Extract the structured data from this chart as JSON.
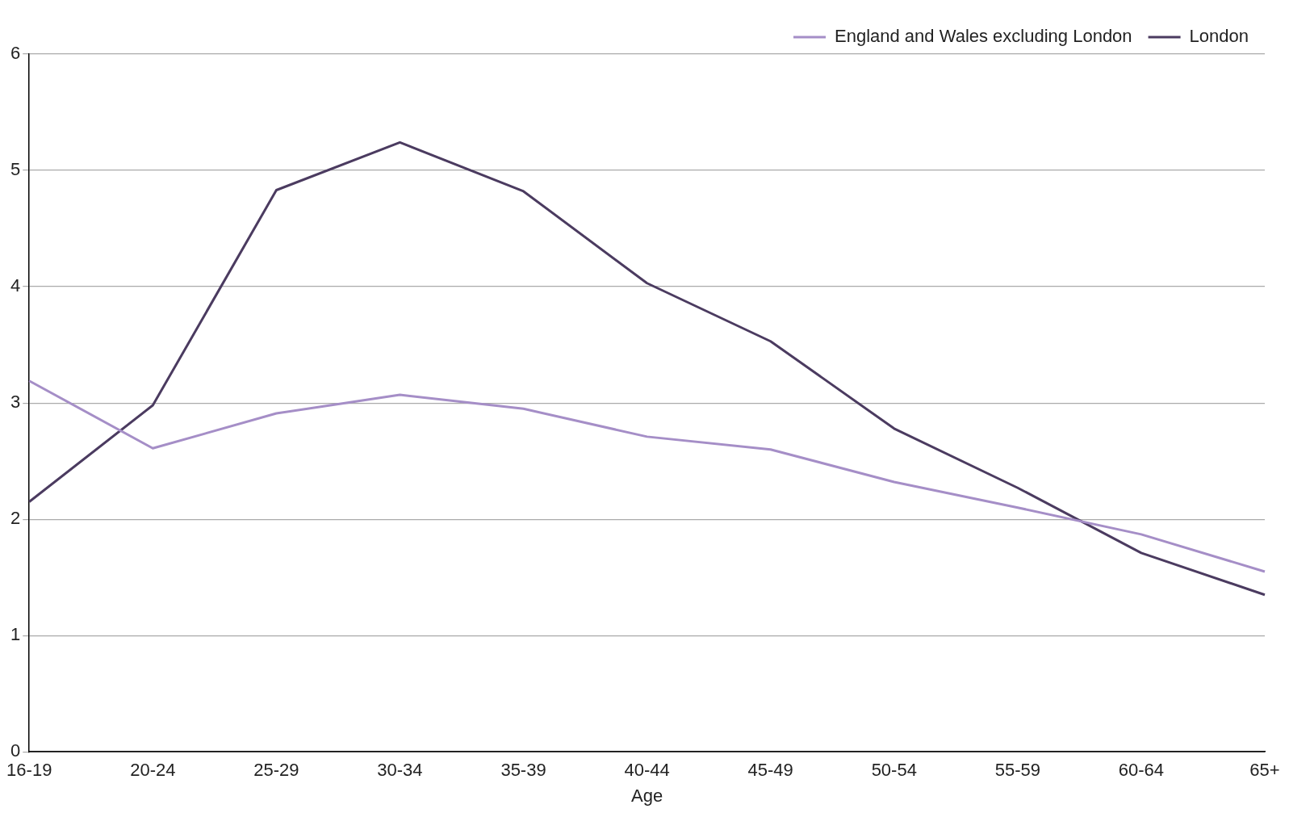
{
  "chart_data": {
    "type": "line",
    "xlabel": "Age",
    "categories": [
      "16-19",
      "20-24",
      "25-29",
      "30-34",
      "35-39",
      "40-44",
      "45-49",
      "50-54",
      "55-59",
      "60-64",
      "65+"
    ],
    "series": [
      {
        "name": "England and Wales excluding London",
        "color": "#a58ec7",
        "values": [
          3.19,
          2.61,
          2.91,
          3.07,
          2.95,
          2.71,
          2.6,
          2.32,
          2.1,
          1.87,
          1.55
        ]
      },
      {
        "name": "London",
        "color": "#4b3b60",
        "values": [
          2.15,
          2.98,
          4.83,
          5.24,
          4.82,
          4.03,
          3.53,
          2.78,
          2.27,
          1.71,
          1.35
        ]
      }
    ],
    "ylim": [
      0,
      6
    ],
    "yticks": [
      0,
      1,
      2,
      3,
      4,
      5,
      6
    ],
    "grid": "y",
    "legend": "top right",
    "marker": "none",
    "line_style": "solid"
  }
}
